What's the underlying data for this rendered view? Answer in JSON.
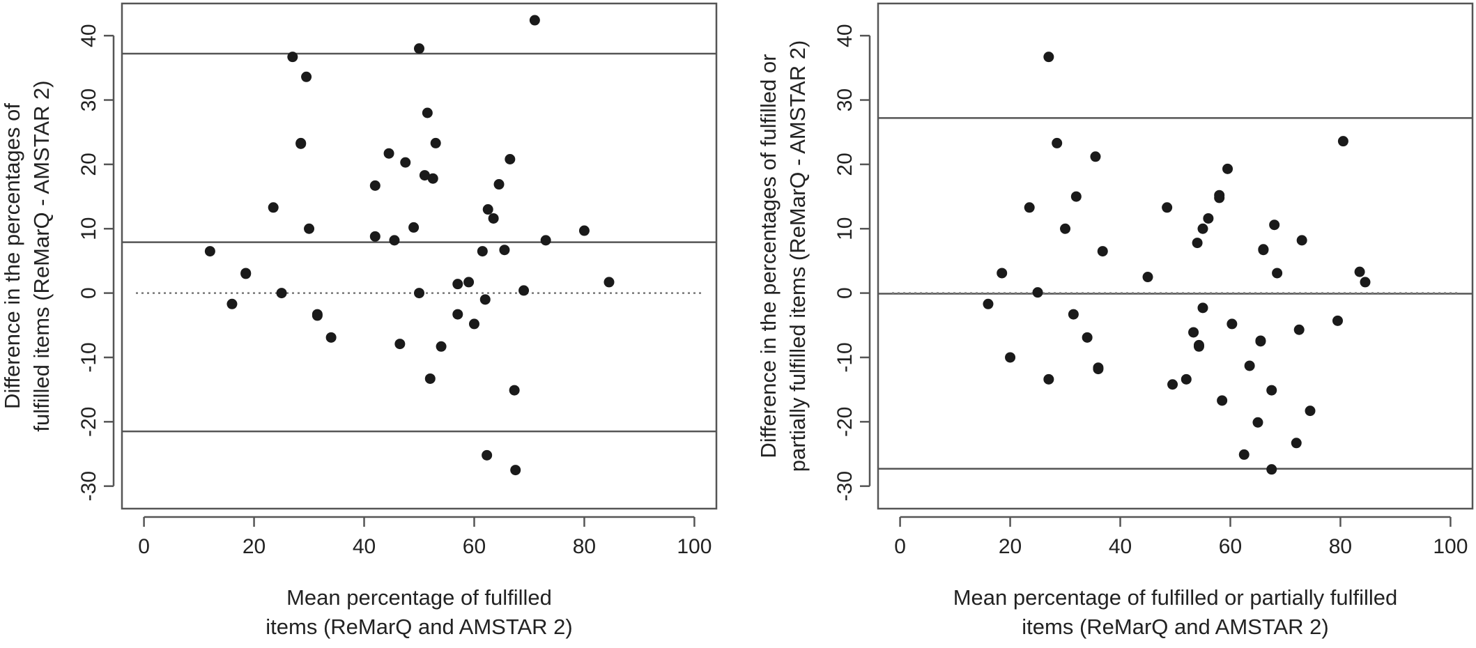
{
  "chart_data": [
    {
      "type": "scatter",
      "xlabel": [
        "Mean percentage of fulfilled",
        "items (ReMarQ and AMSTAR 2)"
      ],
      "ylabel": [
        "Difference in the percentages of",
        "fulfilled items (ReMarQ - AMSTAR 2)"
      ],
      "xlim": [
        -4,
        104
      ],
      "ylim": [
        -33.5,
        45
      ],
      "xticks": [
        0,
        20,
        40,
        60,
        80,
        100
      ],
      "yticks": [
        -30,
        -20,
        -10,
        0,
        10,
        20,
        30,
        40
      ],
      "xtick_labels": [
        "0",
        "20",
        "40",
        "60",
        "80",
        "100"
      ],
      "ytick_labels": [
        "-30",
        "-20",
        "-10",
        "0",
        "10",
        "20",
        "30",
        "40"
      ],
      "reference_lines": {
        "upper_limit": 37.2,
        "mean_difference": 7.9,
        "zero_line": 0,
        "lower_limit": -21.5
      },
      "grid": false,
      "point_color": "#1a1a1a",
      "line_color": "#555555",
      "points": [
        {
          "x": 12,
          "y": 6.5
        },
        {
          "x": 16,
          "y": -1.7
        },
        {
          "x": 18.5,
          "y": 3.1
        },
        {
          "x": 18.5,
          "y": 3.0
        },
        {
          "x": 23.5,
          "y": 13.3
        },
        {
          "x": 25,
          "y": 0
        },
        {
          "x": 27,
          "y": 36.7
        },
        {
          "x": 28.5,
          "y": 23.3
        },
        {
          "x": 28.5,
          "y": 23.2
        },
        {
          "x": 29.5,
          "y": 33.6
        },
        {
          "x": 30,
          "y": 10
        },
        {
          "x": 31.5,
          "y": -3.3
        },
        {
          "x": 31.5,
          "y": -3.5
        },
        {
          "x": 34,
          "y": -6.9
        },
        {
          "x": 42,
          "y": 16.7
        },
        {
          "x": 42,
          "y": 8.8
        },
        {
          "x": 44.5,
          "y": 21.7
        },
        {
          "x": 45.5,
          "y": 8.2
        },
        {
          "x": 46.5,
          "y": -7.9
        },
        {
          "x": 47.5,
          "y": 20.3
        },
        {
          "x": 49,
          "y": 10.2
        },
        {
          "x": 50,
          "y": 38
        },
        {
          "x": 50,
          "y": 0
        },
        {
          "x": 51,
          "y": 18.3
        },
        {
          "x": 51.5,
          "y": 28
        },
        {
          "x": 52,
          "y": -13.3
        },
        {
          "x": 52.5,
          "y": 17.8
        },
        {
          "x": 53,
          "y": 23.3
        },
        {
          "x": 54,
          "y": -8.3
        },
        {
          "x": 57,
          "y": -3.3
        },
        {
          "x": 57,
          "y": 1.4
        },
        {
          "x": 59,
          "y": 1.7
        },
        {
          "x": 60,
          "y": -4.8
        },
        {
          "x": 61.5,
          "y": 6.5
        },
        {
          "x": 62,
          "y": -1
        },
        {
          "x": 62.3,
          "y": -25.2
        },
        {
          "x": 62.5,
          "y": 13
        },
        {
          "x": 63.5,
          "y": 11.6
        },
        {
          "x": 64.5,
          "y": 16.9
        },
        {
          "x": 65.5,
          "y": 6.7
        },
        {
          "x": 66.5,
          "y": 20.8
        },
        {
          "x": 67.3,
          "y": -15.1
        },
        {
          "x": 67.5,
          "y": -27.5
        },
        {
          "x": 69,
          "y": 0.4
        },
        {
          "x": 71,
          "y": 42.4
        },
        {
          "x": 73,
          "y": 8.2
        },
        {
          "x": 80,
          "y": 9.7
        },
        {
          "x": 84.5,
          "y": 1.7
        }
      ]
    },
    {
      "type": "scatter",
      "xlabel": [
        "Mean percentage of fulfilled or partially fulfilled",
        "items (ReMarQ and AMSTAR 2)"
      ],
      "ylabel": [
        "Difference in the percentages of fulfilled or",
        "partially fulfilled items (ReMarQ - AMSTAR 2)"
      ],
      "xlim": [
        -4,
        104
      ],
      "ylim": [
        -33.5,
        45
      ],
      "xticks": [
        0,
        20,
        40,
        60,
        80,
        100
      ],
      "yticks": [
        -30,
        -20,
        -10,
        0,
        10,
        20,
        30,
        40
      ],
      "xtick_labels": [
        "0",
        "20",
        "40",
        "60",
        "80",
        "100"
      ],
      "ytick_labels": [
        "-30",
        "-20",
        "-10",
        "0",
        "10",
        "20",
        "30",
        "40"
      ],
      "reference_lines": {
        "upper_limit": 27.2,
        "mean_difference": -0.1,
        "zero_line": 0,
        "lower_limit": -27.3
      },
      "grid": false,
      "point_color": "#1a1a1a",
      "line_color": "#555555",
      "points": [
        {
          "x": 16,
          "y": -1.7
        },
        {
          "x": 18.5,
          "y": 3.1
        },
        {
          "x": 20,
          "y": -10
        },
        {
          "x": 23.5,
          "y": 13.3
        },
        {
          "x": 25,
          "y": 0.1
        },
        {
          "x": 27,
          "y": 36.7
        },
        {
          "x": 27,
          "y": -13.4
        },
        {
          "x": 28.5,
          "y": 23.3
        },
        {
          "x": 30,
          "y": 10
        },
        {
          "x": 31.5,
          "y": -3.3
        },
        {
          "x": 32,
          "y": 15
        },
        {
          "x": 34,
          "y": -6.9
        },
        {
          "x": 35.5,
          "y": 21.2
        },
        {
          "x": 36,
          "y": -11.6
        },
        {
          "x": 36,
          "y": -11.8
        },
        {
          "x": 36.8,
          "y": 6.5
        },
        {
          "x": 45,
          "y": 2.5
        },
        {
          "x": 48.5,
          "y": 13.3
        },
        {
          "x": 49.5,
          "y": -14.2
        },
        {
          "x": 52,
          "y": -13.4
        },
        {
          "x": 53.3,
          "y": -6.1
        },
        {
          "x": 54,
          "y": 7.8
        },
        {
          "x": 54.3,
          "y": -8.3
        },
        {
          "x": 54.3,
          "y": -8.1
        },
        {
          "x": 55,
          "y": 10
        },
        {
          "x": 55,
          "y": -2.3
        },
        {
          "x": 56,
          "y": 11.6
        },
        {
          "x": 58,
          "y": 15.2
        },
        {
          "x": 58,
          "y": 14.8
        },
        {
          "x": 58.5,
          "y": -16.7
        },
        {
          "x": 59.5,
          "y": 19.3
        },
        {
          "x": 60.3,
          "y": -4.8
        },
        {
          "x": 62.5,
          "y": -25.1
        },
        {
          "x": 63.5,
          "y": -11.3
        },
        {
          "x": 65,
          "y": -20.1
        },
        {
          "x": 65.5,
          "y": -7.4
        },
        {
          "x": 65.5,
          "y": -7.5
        },
        {
          "x": 66,
          "y": 6.8
        },
        {
          "x": 66,
          "y": 6.7
        },
        {
          "x": 67.5,
          "y": -15.1
        },
        {
          "x": 67.5,
          "y": -27.4
        },
        {
          "x": 68,
          "y": 10.6
        },
        {
          "x": 68.5,
          "y": 3.1
        },
        {
          "x": 72,
          "y": -23.3
        },
        {
          "x": 72.5,
          "y": -5.7
        },
        {
          "x": 73,
          "y": 8.2
        },
        {
          "x": 74.5,
          "y": -18.3
        },
        {
          "x": 79.5,
          "y": -4.3
        },
        {
          "x": 80.5,
          "y": 23.6
        },
        {
          "x": 83.5,
          "y": 3.3
        },
        {
          "x": 84.5,
          "y": 1.7
        }
      ]
    }
  ]
}
